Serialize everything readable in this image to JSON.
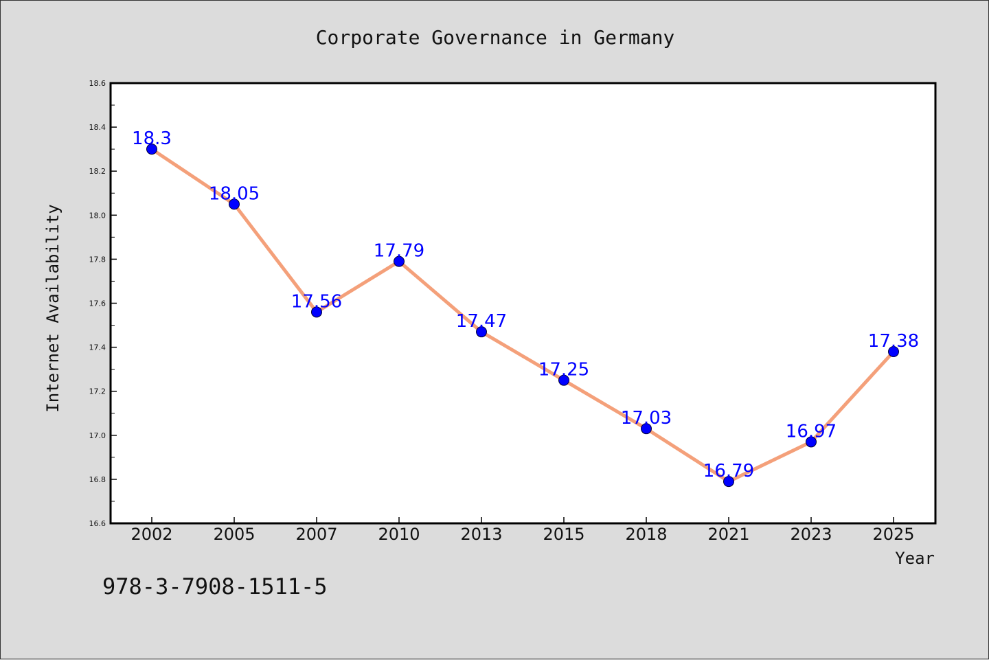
{
  "chart_data": {
    "type": "line",
    "title": "Corporate Governance in Germany",
    "xlabel": "Year",
    "ylabel": "Internet Availability",
    "categories": [
      "2002",
      "2005",
      "2007",
      "2010",
      "2013",
      "2015",
      "2018",
      "2021",
      "2023",
      "2025"
    ],
    "values": [
      18.3,
      18.05,
      17.56,
      17.79,
      17.47,
      17.25,
      17.03,
      16.79,
      16.97,
      17.38
    ],
    "data_labels": [
      "18.3",
      "18.05",
      "17.56",
      "17.79",
      "17.47",
      "17.25",
      "17.03",
      "16.79",
      "16.97",
      "17.38"
    ],
    "ylim": [
      16.6,
      18.6
    ],
    "yticks": [
      16.6,
      16.8,
      17.0,
      17.2,
      17.4,
      17.6,
      17.8,
      18.0,
      18.2,
      18.4,
      18.6
    ],
    "ytick_labels": [
      "16.6",
      "16.8",
      "17.0",
      "17.2",
      "17.4",
      "17.6",
      "17.8",
      "18.0",
      "18.2",
      "18.4",
      "18.6"
    ],
    "grid": false,
    "legend": "none",
    "colors": {
      "line": "#f4a07a",
      "marker": "#0000ff",
      "data_label": "#0000ff",
      "plot_background": "#ffffff",
      "figure_background": "#dcdcdc"
    }
  },
  "footer_text": "978-3-7908-1511-5"
}
